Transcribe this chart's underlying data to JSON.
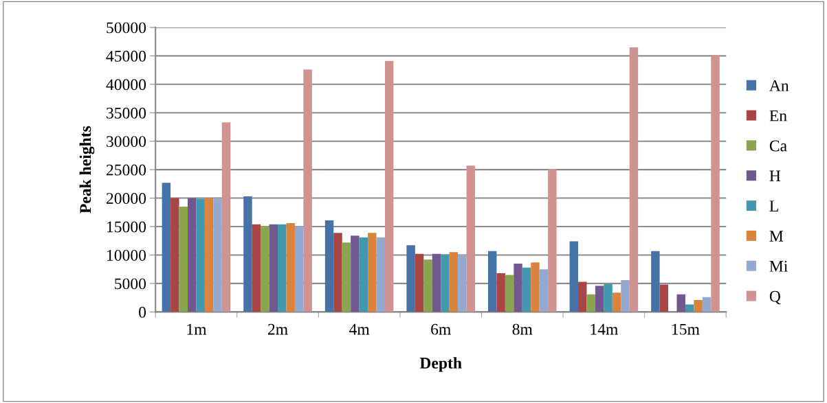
{
  "chart_data": {
    "type": "bar",
    "xlabel": "Depth",
    "ylabel": "Peak heights",
    "categories": [
      "1m",
      "2m",
      "4m",
      "6m",
      "8m",
      "14m",
      "15m"
    ],
    "series": [
      {
        "name": "An",
        "color": "#4672a8",
        "values": [
          22700,
          20300,
          16100,
          11700,
          10700,
          12400,
          10700
        ]
      },
      {
        "name": "En",
        "color": "#a94643",
        "values": [
          20000,
          15400,
          13900,
          10200,
          6800,
          5300,
          4800
        ]
      },
      {
        "name": "Ca",
        "color": "#89a54e",
        "values": [
          18500,
          15100,
          12200,
          9200,
          6500,
          3100,
          null
        ]
      },
      {
        "name": "H",
        "color": "#71588f",
        "values": [
          20000,
          15400,
          13400,
          10200,
          8500,
          4600,
          3100
        ]
      },
      {
        "name": "L",
        "color": "#4198af",
        "values": [
          19900,
          15400,
          13100,
          10100,
          7800,
          4900,
          1300
        ]
      },
      {
        "name": "M",
        "color": "#db843d",
        "values": [
          20000,
          15600,
          13900,
          10500,
          8700,
          3400,
          2100
        ]
      },
      {
        "name": "Mi",
        "color": "#93a9cf",
        "values": [
          19900,
          15100,
          13100,
          10100,
          7500,
          5600,
          2600
        ]
      },
      {
        "name": "Q",
        "color": "#d19392",
        "values": [
          33300,
          42600,
          44100,
          25700,
          25100,
          46500,
          45100
        ]
      }
    ],
    "ylim": [
      0,
      50000
    ],
    "yticks": [
      0,
      5000,
      10000,
      15000,
      20000,
      25000,
      30000,
      35000,
      40000,
      45000,
      50000
    ],
    "grid": "y",
    "legend": "right"
  }
}
